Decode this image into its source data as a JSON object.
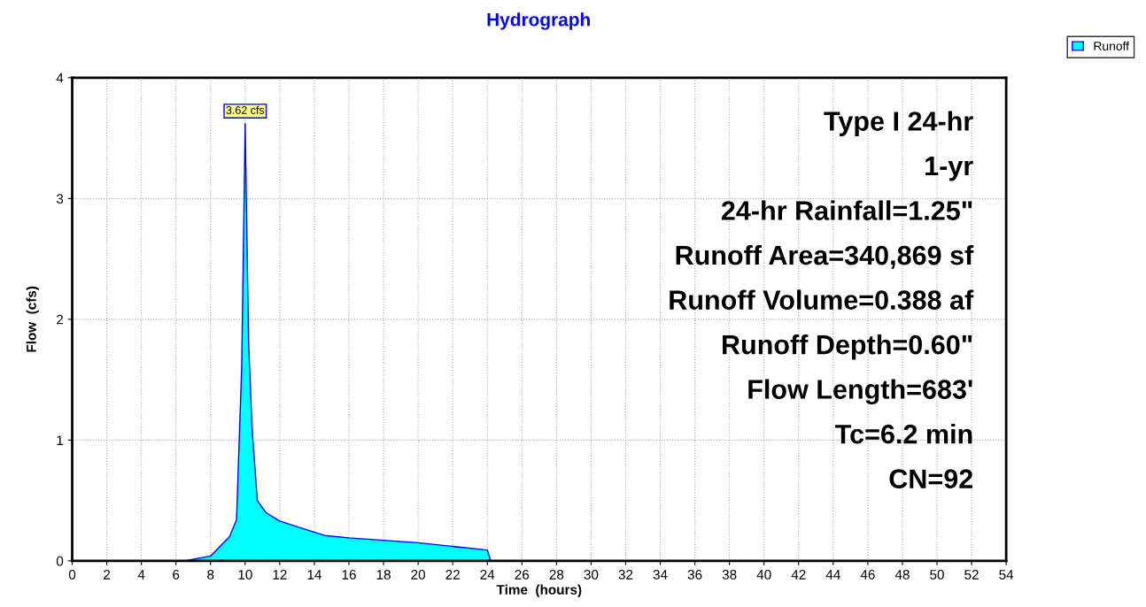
{
  "chart_data": {
    "type": "area",
    "title": "Hydrograph",
    "xlabel": "Time  (hours)",
    "ylabel": "Flow  (cfs)",
    "x": [
      0,
      6.5,
      8,
      9.1,
      9.5,
      9.8,
      10.0,
      10.2,
      10.4,
      10.7,
      11.2,
      12,
      13.5,
      14.6,
      16,
      18,
      20,
      22,
      24,
      24.2,
      54
    ],
    "series": [
      {
        "name": "Runoff",
        "color": "#00ffff",
        "values": [
          0,
          0,
          0.04,
          0.2,
          0.34,
          1.6,
          3.62,
          1.8,
          1.1,
          0.5,
          0.4,
          0.33,
          0.26,
          0.21,
          0.19,
          0.17,
          0.15,
          0.12,
          0.09,
          0,
          0
        ]
      }
    ],
    "xlim": [
      0,
      54
    ],
    "xticks": [
      0,
      2,
      4,
      6,
      8,
      10,
      12,
      14,
      16,
      18,
      20,
      22,
      24,
      26,
      28,
      30,
      32,
      34,
      36,
      38,
      40,
      42,
      44,
      46,
      48,
      50,
      52,
      54
    ],
    "ylim": [
      0,
      4
    ],
    "yticks": [
      0,
      1,
      2,
      3,
      4
    ],
    "grid": true,
    "legend": "top right",
    "annotations": [
      {
        "text": "3.62 cfs",
        "x": 10.0,
        "y": 3.62
      },
      "Type I 24-hr",
      "1-yr",
      "24-hr Rainfall=1.25\"",
      "Runoff Area=340,869 sf",
      "Runoff Volume=0.388 af",
      "Runoff Depth=0.60\"",
      "Flow Length=683'",
      "Tc=6.2 min",
      "CN=92"
    ]
  }
}
